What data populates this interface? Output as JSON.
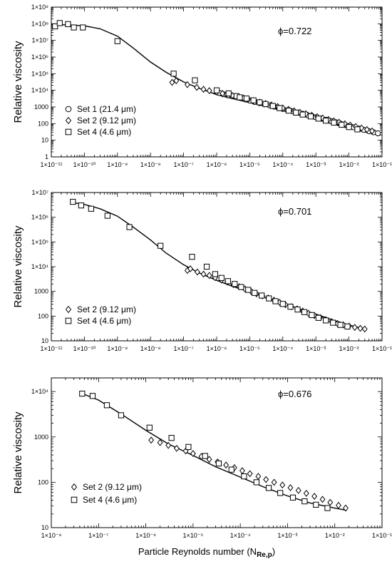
{
  "figure": {
    "xlabel": "Particle Reynolds number (N",
    "xlabel_sub": "Re,p",
    "xlabel_close": ")"
  },
  "chart_data": [
    {
      "type": "scatter",
      "title": "",
      "annotation": "ϕ=0.722",
      "ylabel": "Relative viscosity",
      "x_scale": "log",
      "y_scale": "log",
      "xlim": [
        1e-11,
        0.1
      ],
      "ylim": [
        1,
        1000000000.0
      ],
      "x_ticks": [
        "1×10⁻¹¹",
        "1×10⁻¹⁰",
        "1×10⁻⁹",
        "1×10⁻⁸",
        "1×10⁻⁷",
        "1×10⁻⁶",
        "1×10⁻⁵",
        "1×10⁻⁴",
        "1×10⁻³",
        "1×10⁻²",
        "1×10⁻¹"
      ],
      "y_ticks": [
        "1",
        "10",
        "100",
        "1000",
        "1×10⁴",
        "1×10⁵",
        "1×10⁶",
        "1×10⁷",
        "1×10⁸",
        "1×10⁹"
      ],
      "legend_position": "lower-left",
      "series": [
        {
          "name": "Set 1 (21.4 μm)",
          "marker": "circle",
          "x": [
            1.2e-06,
            1.6e-06,
            2.2e-06,
            3e-06,
            4e-06,
            5.5e-06,
            7.5e-06,
            1e-05,
            1.4e-05,
            2e-05,
            2.8e-05,
            4e-05,
            5.5e-05,
            7.5e-05,
            0.0001,
            0.00014,
            0.0002,
            0.00028,
            0.0004,
            0.00055,
            0.00075,
            0.001,
            0.0014,
            0.002,
            0.0028,
            0.004,
            0.0055,
            0.0075,
            0.01,
            0.014,
            0.02,
            0.028,
            0.04,
            0.055,
            0.075
          ],
          "y": [
            7000,
            5800,
            5000,
            4400,
            3800,
            3300,
            2800,
            2400,
            2000,
            1700,
            1450,
            1250,
            1050,
            880,
            760,
            640,
            550,
            460,
            390,
            330,
            280,
            240,
            200,
            170,
            145,
            120,
            100,
            85,
            72,
            60,
            50,
            42,
            35,
            30,
            26
          ]
        },
        {
          "name": "Set 2 (9.12 μm)",
          "marker": "diamond",
          "x": [
            4.5e-08,
            6e-08,
            1.3e-07,
            2.5e-07,
            4e-07,
            6e-07,
            1e-06,
            1.5e-06,
            2e-06,
            3e-06,
            4.5e-06,
            6.5e-06,
            9e-06,
            1.3e-05,
            2e-05,
            3e-05,
            4.5e-05,
            7e-05,
            0.0001,
            0.00015,
            0.00022,
            0.00033,
            0.0005,
            0.00075,
            0.0011,
            0.0016,
            0.0024,
            0.0035,
            0.005,
            0.0075,
            0.011,
            0.016,
            0.024,
            0.035,
            0.05
          ],
          "y": [
            30000,
            38000,
            22000,
            15000,
            11500,
            9500,
            7800,
            6500,
            5600,
            4800,
            4000,
            3400,
            2900,
            2400,
            1950,
            1600,
            1300,
            1050,
            870,
            710,
            580,
            470,
            390,
            320,
            260,
            215,
            175,
            145,
            120,
            98,
            80,
            66,
            54,
            44,
            36
          ]
        },
        {
          "name": "Set 4 (4.6 μm)",
          "marker": "square",
          "x": [
            1.3e-11,
            1.8e-11,
            3.2e-11,
            4.8e-11,
            9e-11,
            1e-09,
            5e-08,
            2.2e-07,
            1e-06,
            2.3e-06,
            4e-06,
            5e-06,
            8e-06,
            1.3e-05,
            2e-05,
            3e-05,
            5e-05,
            8e-05,
            0.00015,
            0.00025,
            0.0004,
            0.0007,
            0.0012,
            0.002,
            0.0035,
            0.006,
            0.01,
            0.018
          ],
          "y": [
            70000000.0,
            110000000.0,
            95000000.0,
            60000000.0,
            60000000.0,
            9000000.0,
            100000.0,
            40000.0,
            10000.0,
            6500,
            4500,
            3800,
            3200,
            2500,
            1900,
            1500,
            1150,
            850,
            600,
            460,
            350,
            270,
            200,
            150,
            115,
            85,
            62,
            45
          ]
        }
      ],
      "fit_curve": {
        "x": [
          1e-11,
          1e-10,
          3e-10,
          1e-09,
          3e-09,
          1e-08,
          3e-08,
          1e-07,
          3e-07,
          1e-06,
          3e-06,
          1e-05,
          3e-05,
          0.0001,
          0.0003,
          0.001,
          0.003,
          0.01,
          0.03,
          0.07
        ],
        "y": [
          95000000.0,
          75000000.0,
          50000000.0,
          18000000.0,
          3500000.0,
          500000.0,
          120000.0,
          32000.0,
          13000.0,
          5500,
          3200,
          1800,
          1100,
          600,
          330,
          180,
          98,
          52,
          32,
          22
        ]
      }
    },
    {
      "type": "scatter",
      "title": "",
      "annotation": "ϕ=0.701",
      "ylabel": "Relative viscosity",
      "x_scale": "log",
      "y_scale": "log",
      "xlim": [
        1e-11,
        0.1
      ],
      "ylim": [
        10,
        10000000.0
      ],
      "x_ticks": [
        "1×10⁻¹¹",
        "1×10⁻¹⁰",
        "1×10⁻⁹",
        "1×10⁻⁸",
        "1×10⁻⁷",
        "1×10⁻⁶",
        "1×10⁻⁵",
        "1×10⁻⁴",
        "1×10⁻³",
        "1×10⁻²",
        "1×10⁻¹"
      ],
      "y_ticks": [
        "10",
        "100",
        "1000",
        "1×10⁴",
        "1×10⁵",
        "1×10⁶",
        "1×10⁷"
      ],
      "legend_position": "lower-left",
      "series": [
        {
          "name": "Set 2 (9.12 μm)",
          "marker": "diamond",
          "x": [
            1.3e-07,
            1.6e-07,
            2.6e-07,
            4e-07,
            6e-07,
            9e-07,
            1.4e-06,
            2.1e-06,
            3.2e-06,
            4.8e-06,
            7.2e-06,
            1.1e-05,
            1.6e-05,
            2.4e-05,
            3.6e-05,
            5.4e-05,
            8e-05,
            0.00012,
            0.00018,
            0.00027,
            0.0004,
            0.0006,
            0.0009,
            0.00135,
            0.002,
            0.003,
            0.0045,
            0.0068,
            0.01,
            0.015,
            0.022,
            0.03
          ],
          "y": [
            7000,
            8200,
            6100,
            5000,
            4400,
            3600,
            2900,
            2400,
            1900,
            1550,
            1250,
            1000,
            800,
            660,
            540,
            440,
            360,
            290,
            240,
            195,
            160,
            130,
            106,
            87,
            72,
            60,
            50,
            44,
            39,
            35,
            32,
            30
          ]
        },
        {
          "name": "Set 4 (4.6 μm)",
          "marker": "square",
          "x": [
            4.5e-11,
            8e-11,
            1.6e-10,
            5e-10,
            2.3e-09,
            2e-08,
            1.8e-07,
            5e-07,
            9e-07,
            1.4e-06,
            2.2e-06,
            3.5e-06,
            5.5e-06,
            9e-06,
            1.4e-05,
            2.3e-05,
            3.8e-05,
            6e-05,
            0.0001,
            0.00017,
            0.00028,
            0.00045,
            0.00075,
            0.0012,
            0.002,
            0.0033,
            0.0055,
            0.009
          ],
          "y": [
            4200000.0,
            3000000.0,
            2200000.0,
            1150000.0,
            400000.0,
            70000.0,
            25000.0,
            10000.0,
            5000,
            3500,
            2600,
            2000,
            1500,
            1150,
            870,
            680,
            520,
            400,
            310,
            240,
            185,
            145,
            110,
            85,
            67,
            54,
            44,
            38
          ]
        }
      ],
      "fit_curve": {
        "x": [
          4e-11,
          1e-10,
          3e-10,
          1e-09,
          3e-09,
          1e-08,
          3e-08,
          1e-07,
          3e-07,
          1e-06,
          3e-06,
          1e-05,
          3e-05,
          0.0001,
          0.0003,
          0.001,
          0.003,
          0.01,
          0.03
        ],
        "y": [
          4000000.0,
          3300000.0,
          2200000.0,
          1100000.0,
          400000.0,
          120000.0,
          35000.0,
          12000.0,
          5500,
          2800,
          1600,
          950,
          570,
          340,
          200,
          120,
          72,
          44,
          30
        ]
      }
    },
    {
      "type": "scatter",
      "title": "",
      "annotation": "ϕ=0.676",
      "ylabel": "Relative viscosity",
      "xlabel": "Particle Reynolds number (NRe,p)",
      "x_scale": "log",
      "y_scale": "log",
      "xlim": [
        1e-08,
        0.1
      ],
      "ylim": [
        10,
        20000.0
      ],
      "x_ticks": [
        "1×10⁻⁸",
        "1×10⁻⁷",
        "1×10⁻⁶",
        "1×10⁻⁵",
        "1×10⁻⁴",
        "1×10⁻³",
        "1×10⁻²",
        "1×10⁻¹"
      ],
      "y_ticks": [
        "10",
        "100",
        "1000",
        "1×10⁴"
      ],
      "legend_position": "lower-left",
      "series": [
        {
          "name": "Set 2 (9.12 μm)",
          "marker": "diamond",
          "x": [
            1.3e-06,
            2e-06,
            3e-06,
            4.5e-06,
            7e-06,
            1e-05,
            1.5e-05,
            2.2e-05,
            3.3e-05,
            5e-05,
            7.5e-05,
            0.00011,
            0.00016,
            0.00024,
            0.00035,
            0.00052,
            0.00078,
            0.00115,
            0.0017,
            0.0025,
            0.0037,
            0.0055,
            0.008,
            0.012,
            0.017
          ],
          "y": [
            850,
            750,
            650,
            560,
            490,
            430,
            370,
            320,
            280,
            240,
            210,
            180,
            155,
            135,
            115,
            100,
            87,
            76,
            66,
            57,
            49,
            42,
            36,
            31,
            27
          ]
        },
        {
          "name": "Set 4 (4.6 μm)",
          "marker": "square",
          "x": [
            4.5e-08,
            7.5e-08,
            1.5e-07,
            3e-07,
            1.2e-06,
            3.5e-06,
            8e-06,
            1.8e-05,
            3.5e-05,
            6.5e-05,
            0.00012,
            0.00022,
            0.0004,
            0.0007,
            0.0013,
            0.0023,
            0.004,
            0.007
          ],
          "y": [
            9000,
            8000,
            5000,
            3000,
            1600,
            950,
            600,
            380,
            260,
            190,
            135,
            100,
            75,
            58,
            46,
            38,
            32,
            27
          ]
        }
      ],
      "fit_curve": {
        "x": [
          4e-08,
          1e-07,
          3e-07,
          1e-06,
          3e-06,
          1e-05,
          3e-05,
          0.0001,
          0.0003,
          0.001,
          0.003,
          0.01,
          0.018
        ],
        "y": [
          9500,
          6500,
          3200,
          1400,
          700,
          390,
          220,
          130,
          80,
          50,
          35,
          27,
          24
        ]
      }
    }
  ]
}
